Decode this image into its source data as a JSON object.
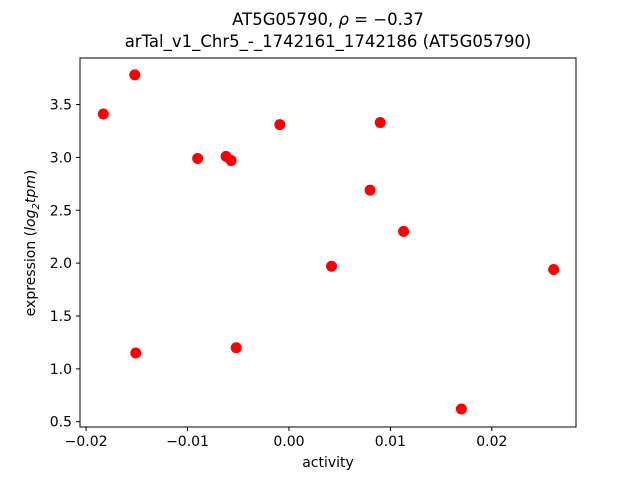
{
  "chart_data": {
    "type": "scatter",
    "title": {
      "line1_prefix": "AT5G05790, ",
      "line1_rho": "ρ",
      "line1_value": " = −0.37",
      "line2": "arTal_v1_Chr5_-_1742161_1742186 (AT5G05790)"
    },
    "xlabel": "activity",
    "ylabel": {
      "prefix": "expression (",
      "log": "log",
      "sub": "2",
      "tpm": "tpm",
      "suffix": ")"
    },
    "xlim": [
      -0.0206,
      0.0283
    ],
    "ylim": [
      0.45,
      3.94
    ],
    "xticks": [
      {
        "v": -0.02,
        "label": "−0.02"
      },
      {
        "v": -0.01,
        "label": "−0.01"
      },
      {
        "v": 0.0,
        "label": "0.00"
      },
      {
        "v": 0.01,
        "label": "0.01"
      },
      {
        "v": 0.02,
        "label": "0.02"
      }
    ],
    "yticks": [
      {
        "v": 0.5,
        "label": "0.5"
      },
      {
        "v": 1.0,
        "label": "1.0"
      },
      {
        "v": 1.5,
        "label": "1.5"
      },
      {
        "v": 2.0,
        "label": "2.0"
      },
      {
        "v": 2.5,
        "label": "2.5"
      },
      {
        "v": 3.0,
        "label": "3.0"
      },
      {
        "v": 3.5,
        "label": "3.5"
      }
    ],
    "grid": false,
    "legend_position": "none",
    "marker_color": "#ff0000",
    "points": [
      [
        -0.0183,
        3.41
      ],
      [
        -0.0152,
        3.78
      ],
      [
        -0.0151,
        1.15
      ],
      [
        -0.009,
        2.99
      ],
      [
        -0.0062,
        3.01
      ],
      [
        -0.0057,
        2.97
      ],
      [
        -0.0052,
        1.2
      ],
      [
        -0.0009,
        3.31
      ],
      [
        0.0042,
        1.97
      ],
      [
        0.008,
        2.69
      ],
      [
        0.009,
        3.33
      ],
      [
        0.0113,
        2.3
      ],
      [
        0.017,
        0.62
      ],
      [
        0.0261,
        1.94
      ]
    ]
  }
}
